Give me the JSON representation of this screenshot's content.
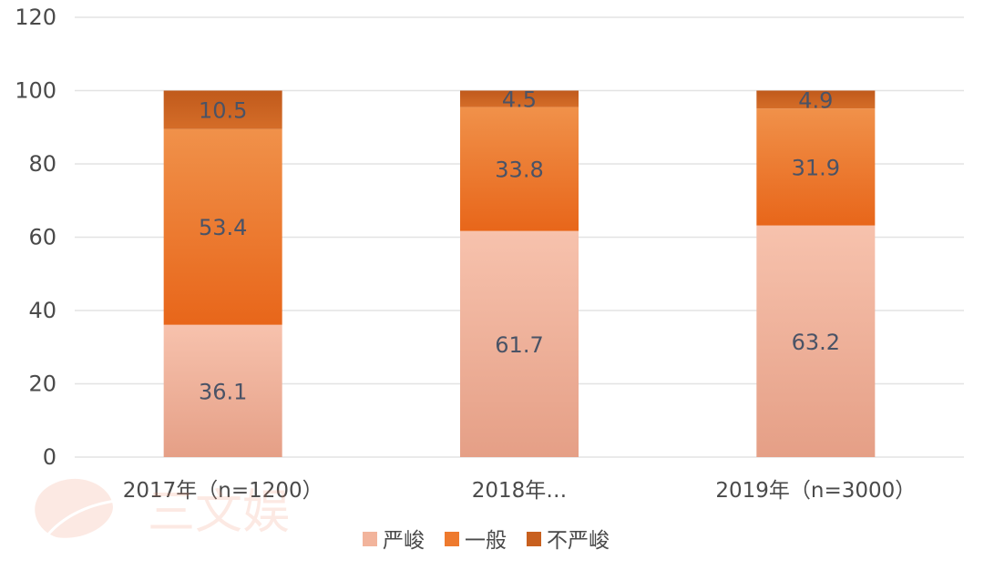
{
  "chart_data": {
    "type": "bar",
    "stacked": true,
    "categories": [
      "2017年（n=1200）",
      "2018年…",
      "2019年（n=3000）"
    ],
    "series": [
      {
        "name": "严峻",
        "values": [
          36.1,
          61.7,
          63.2
        ],
        "color": "#f2b49c"
      },
      {
        "name": "一般",
        "values": [
          53.4,
          33.8,
          31.9
        ],
        "color": "#ee7a2e"
      },
      {
        "name": "不严峻",
        "values": [
          10.5,
          4.5,
          4.9
        ],
        "color": "#c8601f"
      }
    ],
    "ylim": [
      0,
      120
    ],
    "yticks": [
      0,
      20,
      40,
      60,
      80,
      100,
      120
    ],
    "grid": true,
    "legend_position": "bottom",
    "title": "",
    "xlabel": "",
    "ylabel": ""
  },
  "watermark": {
    "text": "三文娱"
  }
}
